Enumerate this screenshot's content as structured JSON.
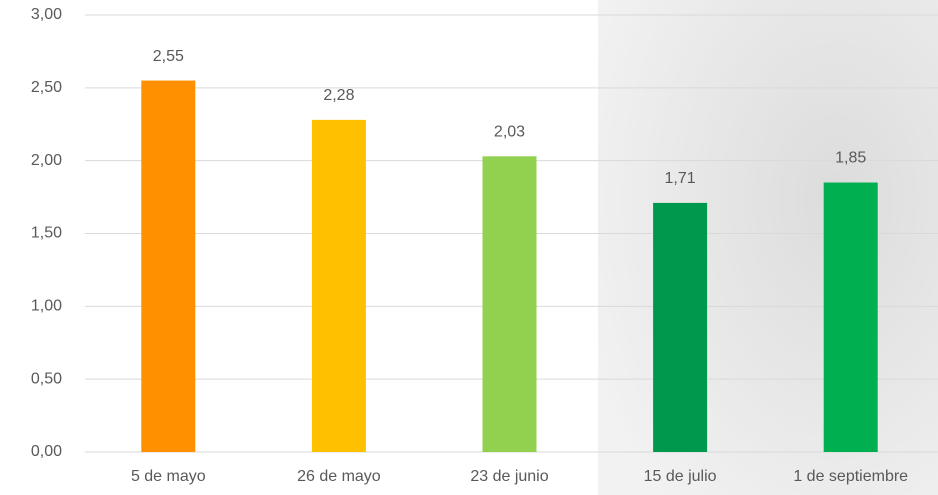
{
  "chart_data": {
    "type": "bar",
    "categories": [
      "5 de mayo",
      "26 de mayo",
      "23 de junio",
      "15 de julio",
      "1 de septiembre"
    ],
    "values": [
      2.55,
      2.28,
      2.03,
      1.71,
      1.85
    ],
    "value_labels": [
      "2,55",
      "2,28",
      "2,03",
      "1,71",
      "1,85"
    ],
    "colors": [
      "#ff9000",
      "#ffc000",
      "#92d050",
      "#00984c",
      "#00b050"
    ],
    "ylim": [
      0,
      3
    ],
    "yticks": [
      {
        "value": 0,
        "label": "0,00"
      },
      {
        "value": 0.5,
        "label": "0,50"
      },
      {
        "value": 1,
        "label": "1,00"
      },
      {
        "value": 1.5,
        "label": "1,50"
      },
      {
        "value": 2,
        "label": "2,00"
      },
      {
        "value": 2.5,
        "label": "2,50"
      },
      {
        "value": 3,
        "label": "3,00"
      }
    ],
    "grid": true
  }
}
